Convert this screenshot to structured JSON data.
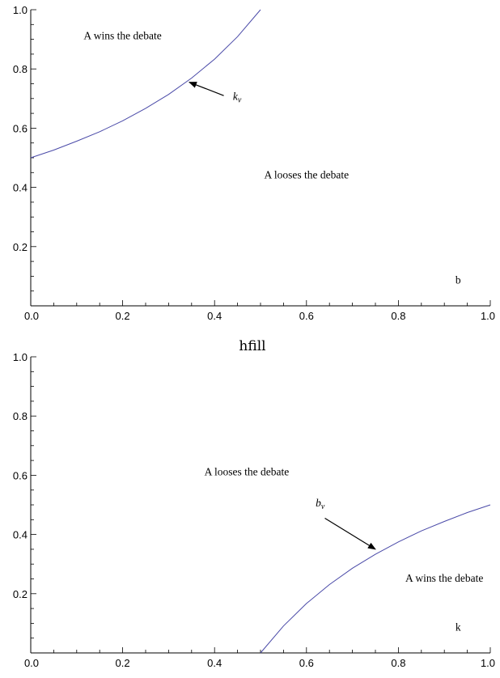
{
  "between_text": "hfill",
  "colors": {
    "curve": "#4a4aa8",
    "axis": "#000000",
    "arrow": "#000000"
  },
  "chart_data": [
    {
      "type": "line",
      "title": "",
      "xlabel": "b",
      "ylabel": "",
      "xlim": [
        0.0,
        1.0
      ],
      "ylim": [
        0.0,
        1.0
      ],
      "x_ticks": [
        "0.0",
        "0.2",
        "0.4",
        "0.6",
        "0.8",
        "1.0"
      ],
      "y_ticks": [
        "0.2",
        "0.4",
        "0.6",
        "0.8",
        "1.0"
      ],
      "grid": false,
      "series": [
        {
          "x": [
            0.0,
            0.05,
            0.1,
            0.15,
            0.2,
            0.25,
            0.3,
            0.35,
            0.4,
            0.45,
            0.5
          ],
          "y": [
            0.5,
            0.526,
            0.556,
            0.588,
            0.625,
            0.667,
            0.714,
            0.769,
            0.833,
            0.909,
            1.0
          ]
        }
      ],
      "annotations": [
        {
          "text": "A wins the debate",
          "x": 0.2,
          "y": 0.9
        },
        {
          "text": "A looses the debate",
          "x": 0.6,
          "y": 0.43
        }
      ],
      "pointer": {
        "var": "k",
        "sub": "v",
        "label_x": 0.44,
        "label_y": 0.695,
        "from_x": 0.42,
        "from_y": 0.71,
        "to_x": 0.345,
        "to_y": 0.755
      }
    },
    {
      "type": "line",
      "title": "",
      "xlabel": "k",
      "ylabel": "",
      "xlim": [
        0.0,
        1.0
      ],
      "ylim": [
        0.0,
        1.0
      ],
      "x_ticks": [
        "0.0",
        "0.2",
        "0.4",
        "0.6",
        "0.8",
        "1.0"
      ],
      "y_ticks": [
        "0.2",
        "0.4",
        "0.6",
        "0.8",
        "1.0"
      ],
      "grid": false,
      "series": [
        {
          "x": [
            0.5,
            0.55,
            0.6,
            0.65,
            0.7,
            0.75,
            0.8,
            0.85,
            0.9,
            0.95,
            1.0
          ],
          "y": [
            0.0,
            0.091,
            0.167,
            0.231,
            0.286,
            0.333,
            0.375,
            0.412,
            0.444,
            0.474,
            0.5
          ]
        }
      ],
      "annotations": [
        {
          "text": "A looses the debate",
          "x": 0.47,
          "y": 0.6
        },
        {
          "text": "A wins the debate",
          "x": 0.9,
          "y": 0.24
        }
      ],
      "pointer": {
        "var": "b",
        "sub": "v",
        "label_x": 0.62,
        "label_y": 0.495,
        "from_x": 0.64,
        "from_y": 0.455,
        "to_x": 0.75,
        "to_y": 0.35
      }
    }
  ]
}
